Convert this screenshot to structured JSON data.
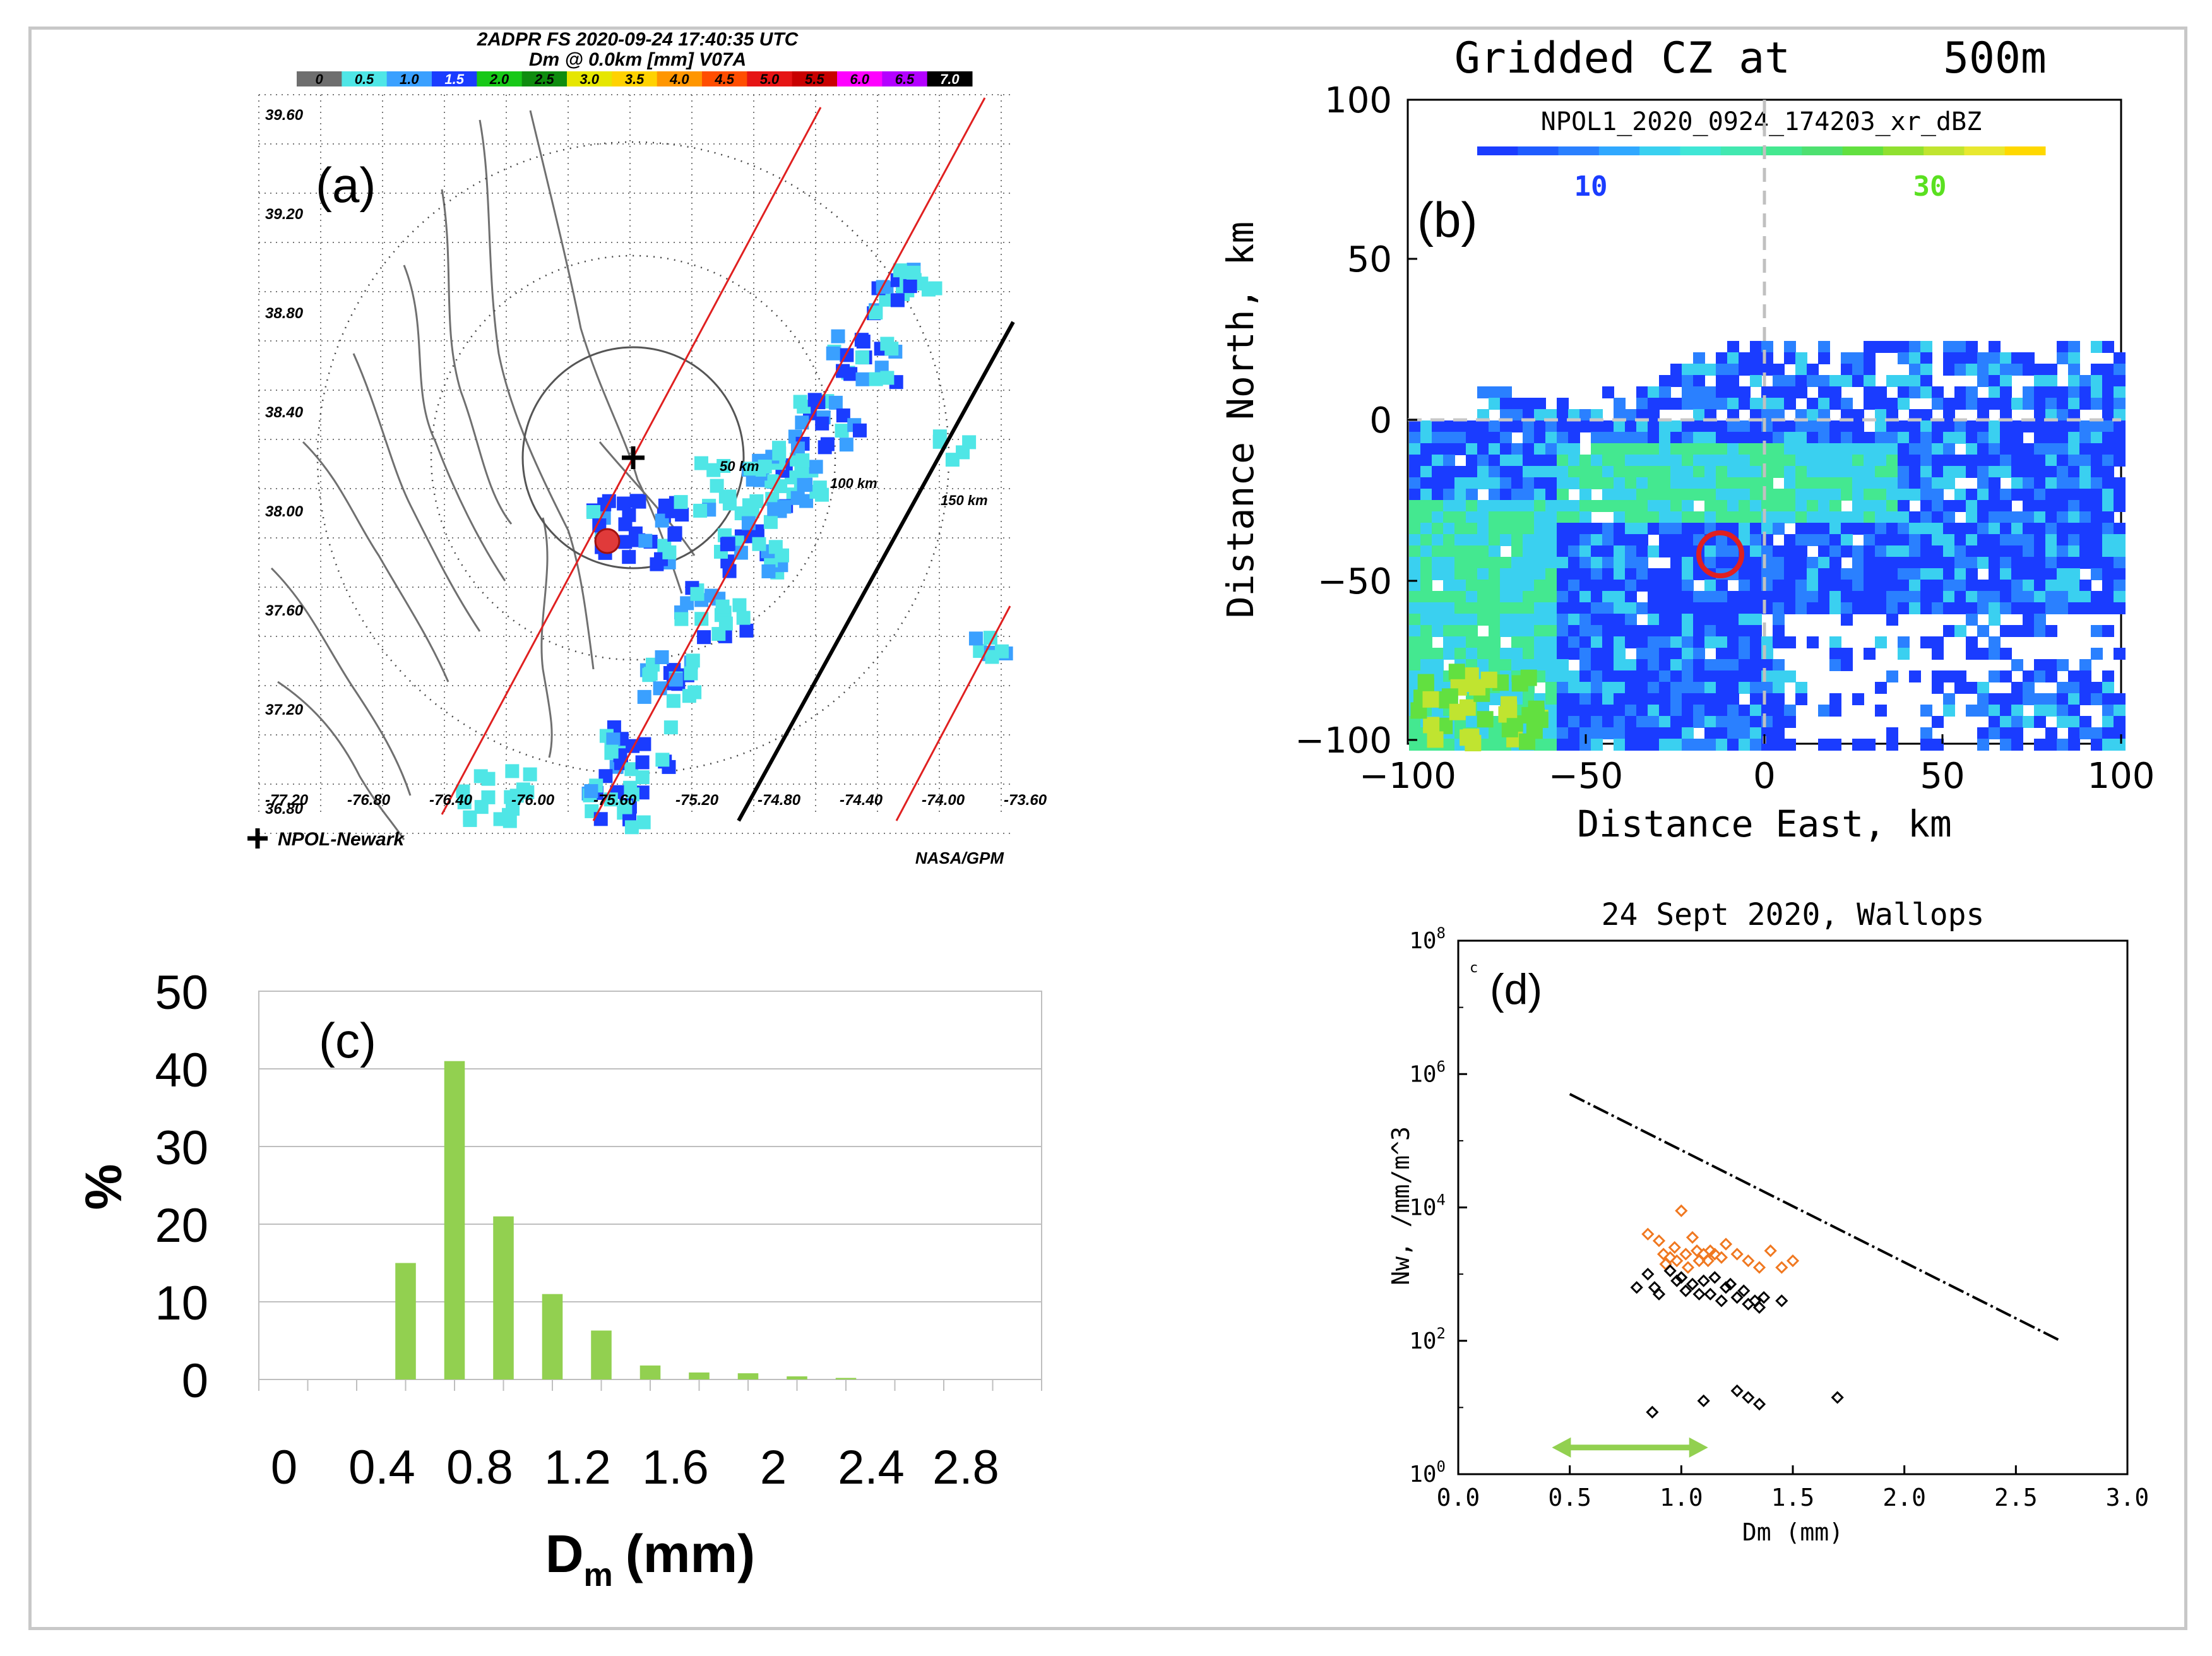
{
  "panel_a": {
    "label": "(a)",
    "title_line1": "2ADPR FS 2020-09-24 17:40:35 UTC",
    "title_line2": "Dm @ 0.0km [mm] V07A",
    "colorbar_labels": [
      "0",
      "0.5",
      "1.0",
      "1.5",
      "2.0",
      "2.5",
      "3.0",
      "3.5",
      "4.0",
      "4.5",
      "5.0",
      "5.5",
      "6.0",
      "6.5",
      "7.0"
    ],
    "colorbar_colors": [
      "#6e6e6e",
      "#4fe6e6",
      "#3aa0ff",
      "#1a3cff",
      "#18c818",
      "#0f8c0f",
      "#e6e600",
      "#ffd200",
      "#ff9600",
      "#ff4e00",
      "#e61414",
      "#c80000",
      "#ff00ff",
      "#b400ff",
      "#000000"
    ],
    "lat_labels": [
      "39.60",
      "39.20",
      "38.80",
      "38.40",
      "38.00",
      "37.60",
      "37.20",
      "36.80"
    ],
    "lon_labels": [
      "-77.20",
      "-76.80",
      "-76.40",
      "-76.00",
      "-75.60",
      "-75.20",
      "-74.80",
      "-74.40",
      "-74.00",
      "-73.60"
    ],
    "range_labels": [
      "50 km",
      "100 km",
      "150 km"
    ],
    "legend": "NPOL-Newark",
    "credit": "NASA/GPM"
  },
  "panel_b": {
    "label": "(b)",
    "title_left": "Gridded CZ at",
    "title_right": "500m",
    "subtitle": "NPOL1_2020_0924_174203_xr_dBZ",
    "colorbar_tick_10": "10",
    "colorbar_tick_30": "30",
    "xlabel": "Distance East, km",
    "ylabel": "Distance North, km",
    "xticks": [
      "−100",
      "−50",
      "0",
      "50",
      "100"
    ],
    "yticks": [
      "100",
      "50",
      "0",
      "−50",
      "−100"
    ]
  },
  "chart_data": [
    {
      "type": "bar",
      "label": "(c)",
      "categories": [
        "0",
        "0.2",
        "0.4",
        "0.6",
        "0.8",
        "1.0",
        "1.2",
        "1.4",
        "1.6",
        "1.8",
        "2.0",
        "2.2",
        "2.4",
        "2.6",
        "2.8",
        "3.0"
      ],
      "tick_labels": [
        "0",
        "0.4",
        "0.8",
        "1.2",
        "1.6",
        "2",
        "2.4",
        "2.8"
      ],
      "values": [
        0,
        0,
        15,
        41,
        21,
        11,
        6.3,
        1.8,
        0.9,
        0.8,
        0.4,
        0.2,
        0,
        0,
        0,
        0
      ],
      "ylim": [
        0,
        50
      ],
      "yticks": [
        "0",
        "10",
        "20",
        "30",
        "40",
        "50"
      ],
      "ylabel": "%",
      "xlabel_main": "D",
      "xlabel_sub": "m",
      "xlabel_unit": "(mm)",
      "bar_color": "#92d050"
    },
    {
      "type": "scatter",
      "label": "(d)",
      "title": "24 Sept 2020, Wallops",
      "corner_mark": "c",
      "xlabel": "Dm (mm)",
      "ylabel": "Nw, /mm/m^3",
      "xlim": [
        0.0,
        3.0
      ],
      "ylim_log10": [
        0,
        8
      ],
      "xticks": [
        "0.0",
        "0.5",
        "1.0",
        "1.5",
        "2.0",
        "2.5",
        "3.0"
      ],
      "yticks": [
        {
          "base": "10",
          "exp": "0"
        },
        {
          "base": "10",
          "exp": "2"
        },
        {
          "base": "10",
          "exp": "4"
        },
        {
          "base": "10",
          "exp": "6"
        },
        {
          "base": "10",
          "exp": "8"
        }
      ],
      "reference_line": {
        "x": [
          0.5,
          2.7
        ],
        "log10_y": [
          5.7,
          2.0
        ],
        "style": "dash-dot"
      },
      "range_arrow": {
        "x": [
          0.42,
          1.12
        ],
        "log10_y": 0.4,
        "color": "#92d050"
      },
      "series": [
        {
          "name": "orange",
          "color": "#f07820",
          "points": [
            [
              0.85,
              3.6
            ],
            [
              0.9,
              3.5
            ],
            [
              0.92,
              3.3
            ],
            [
              0.95,
              3.25
            ],
            [
              0.97,
              3.4
            ],
            [
              1.0,
              3.95
            ],
            [
              1.02,
              3.3
            ],
            [
              1.05,
              3.55
            ],
            [
              1.08,
              3.2
            ],
            [
              1.1,
              3.3
            ],
            [
              1.12,
              3.2
            ],
            [
              1.15,
              3.3
            ],
            [
              1.18,
              3.25
            ],
            [
              1.2,
              3.45
            ],
            [
              1.25,
              3.3
            ],
            [
              1.3,
              3.2
            ],
            [
              1.35,
              3.1
            ],
            [
              1.4,
              3.35
            ],
            [
              1.45,
              3.1
            ],
            [
              1.5,
              3.2
            ],
            [
              0.93,
              3.15
            ],
            [
              0.98,
              3.2
            ],
            [
              1.03,
              3.1
            ],
            [
              1.07,
              3.35
            ],
            [
              1.13,
              3.35
            ]
          ]
        },
        {
          "name": "black",
          "color": "#000000",
          "points": [
            [
              0.8,
              2.8
            ],
            [
              0.85,
              3.0
            ],
            [
              0.88,
              2.8
            ],
            [
              0.9,
              2.7
            ],
            [
              0.95,
              3.05
            ],
            [
              1.0,
              2.95
            ],
            [
              1.02,
              2.75
            ],
            [
              1.05,
              2.85
            ],
            [
              1.1,
              2.9
            ],
            [
              1.13,
              2.7
            ],
            [
              1.15,
              2.95
            ],
            [
              1.18,
              2.6
            ],
            [
              1.2,
              2.8
            ],
            [
              1.25,
              2.65
            ],
            [
              1.28,
              2.75
            ],
            [
              1.3,
              2.55
            ],
            [
              1.33,
              2.6
            ],
            [
              1.37,
              2.65
            ],
            [
              1.45,
              2.6
            ],
            [
              0.98,
              2.9
            ],
            [
              1.08,
              2.7
            ],
            [
              1.22,
              2.85
            ],
            [
              1.35,
              2.5
            ],
            [
              0.87,
              0.93
            ],
            [
              1.1,
              1.1
            ],
            [
              1.25,
              1.25
            ],
            [
              1.3,
              1.15
            ],
            [
              1.35,
              1.05
            ],
            [
              1.7,
              1.15
            ]
          ]
        }
      ]
    }
  ]
}
